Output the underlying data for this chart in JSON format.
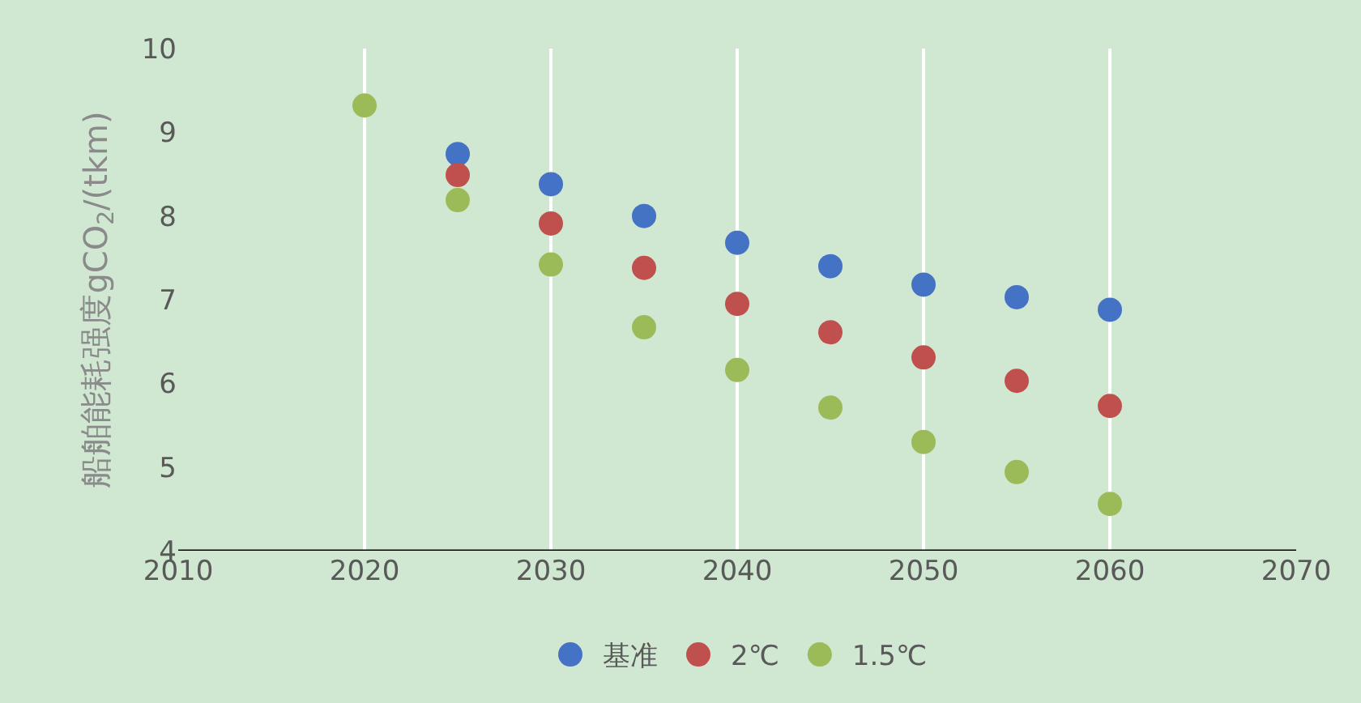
{
  "chart_data": {
    "type": "scatter",
    "ylabel": "船舶能耗强度gCO$_{2}$/(tkm)",
    "x": [
      2020,
      2025,
      2030,
      2035,
      2040,
      2045,
      2050,
      2055,
      2060
    ],
    "series": [
      {
        "name": "基准",
        "color": "#4472c4",
        "values": [
          null,
          8.74,
          8.38,
          8.0,
          7.68,
          7.4,
          7.18,
          7.03,
          6.88
        ]
      },
      {
        "name": "2℃",
        "color": "#c0504d",
        "values": [
          null,
          8.49,
          7.91,
          7.38,
          6.95,
          6.61,
          6.31,
          6.03,
          5.73
        ]
      },
      {
        "name": "1.5℃",
        "color": "#9bbb59",
        "values": [
          9.32,
          8.19,
          7.42,
          6.67,
          6.16,
          5.71,
          5.3,
          4.94,
          4.56
        ]
      }
    ],
    "xlim": [
      2010,
      2070
    ],
    "xticks": [
      2010,
      2020,
      2030,
      2040,
      2050,
      2060,
      2070
    ],
    "ylim": [
      4,
      10
    ],
    "yticks": [
      4,
      5,
      6,
      7,
      8,
      9,
      10
    ],
    "grid": "x",
    "legend": "bottom",
    "marker": "circle"
  }
}
